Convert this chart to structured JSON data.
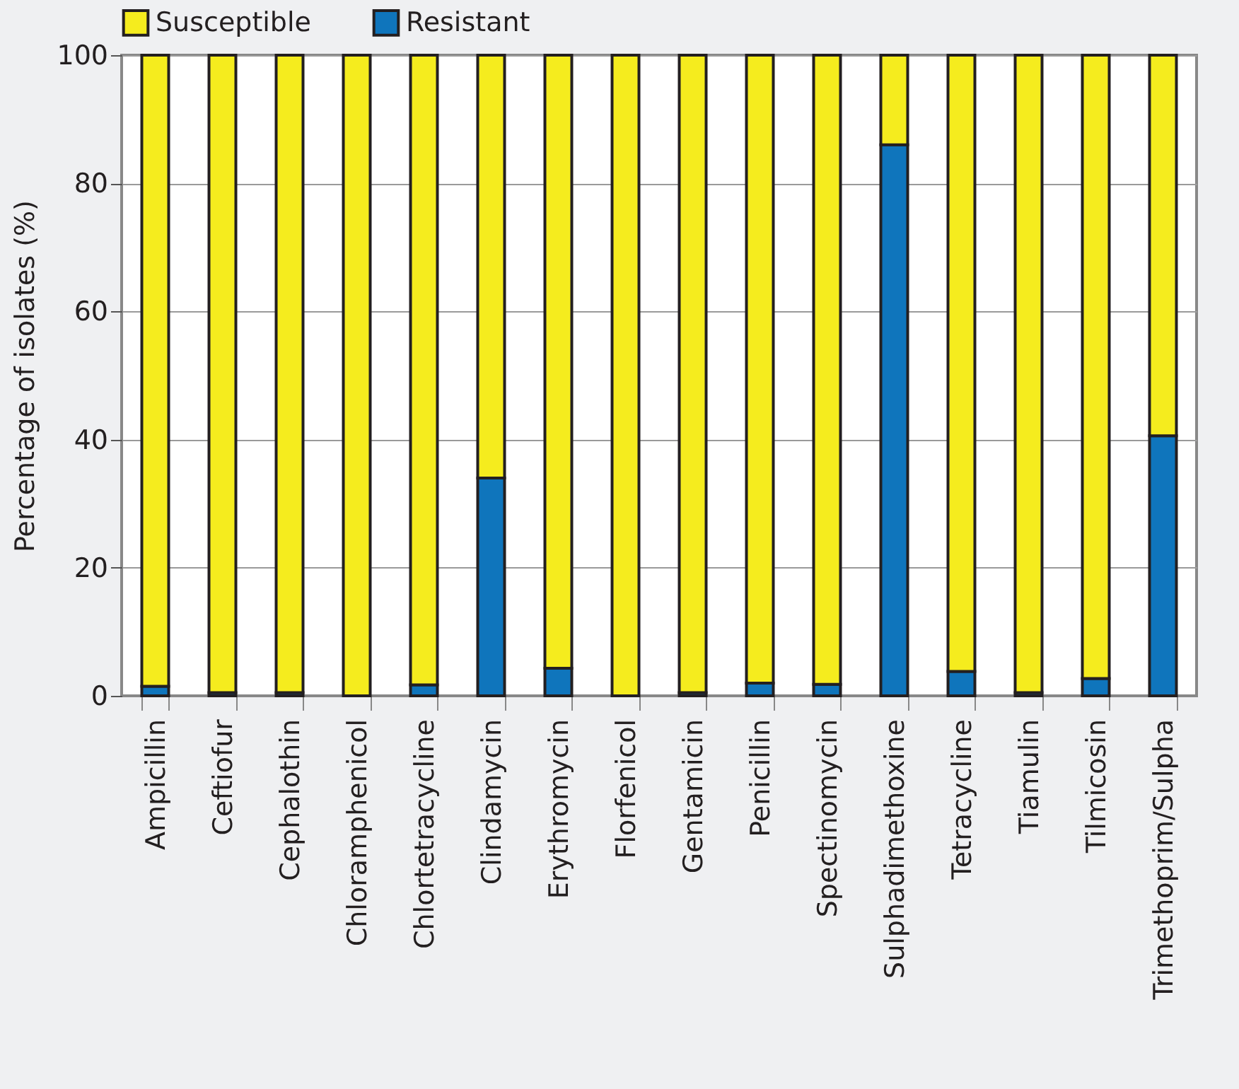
{
  "chart_data": {
    "type": "bar",
    "stacked": true,
    "ylabel": "Percentage of isolates (%)",
    "categories": [
      "Ampicillin",
      "Ceftiofur",
      "Cephalothin",
      "Chloramphenicol",
      "Chlortetracycline",
      "Clindamycin",
      "Erythromycin",
      "Florfenicol",
      "Gentamicin",
      "Penicillin",
      "Spectinomycin",
      "Sulphadimethoxine",
      "Tetracycline",
      "Tiamulin",
      "Tilmicosin",
      "Trimethoprim/Sulpha"
    ],
    "series": [
      {
        "name": "Resistant",
        "color": "#0f75bc",
        "values": [
          1.5,
          0.5,
          0.5,
          0,
          1.7,
          34,
          4.3,
          0,
          0.5,
          2,
          1.8,
          86,
          3.8,
          0.5,
          2.7,
          40.6
        ]
      },
      {
        "name": "Susceptible",
        "color": "#f5ec1e",
        "values": [
          98.5,
          99.5,
          99.5,
          100,
          98.3,
          66,
          95.7,
          100,
          99.5,
          98,
          98.2,
          14,
          96.2,
          99.5,
          97.3,
          59.4
        ]
      }
    ],
    "ylim": [
      0,
      100
    ],
    "yticks": [
      0,
      20,
      40,
      60,
      80,
      100
    ],
    "grid": "y",
    "legend": "top"
  }
}
